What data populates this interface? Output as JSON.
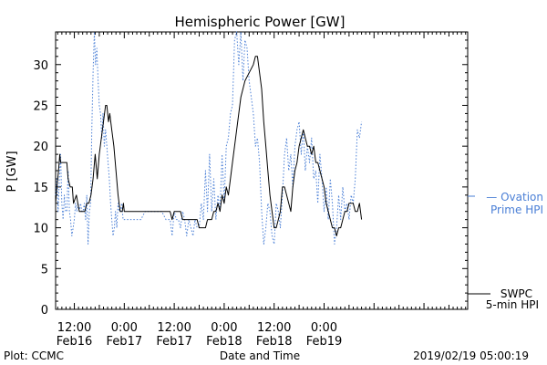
{
  "chart_data": {
    "type": "line",
    "title": "Hemispheric Power [GW]",
    "ylabel": "P [GW]",
    "xlabel": "Date and Time",
    "ylim": [
      0,
      34
    ],
    "xlim_hours": [
      -16.5,
      82.5
    ],
    "y_ticks": [
      0,
      5,
      10,
      15,
      20,
      25,
      30
    ],
    "x_ticks": [
      {
        "time": "12:00",
        "date": "Feb16",
        "hour": -12
      },
      {
        "time": "0:00",
        "date": "Feb17",
        "hour": 0
      },
      {
        "time": "12:00",
        "date": "Feb17",
        "hour": 12
      },
      {
        "time": "0:00",
        "date": "Feb18",
        "hour": 24
      },
      {
        "time": "12:00",
        "date": "Feb18",
        "hour": 36
      },
      {
        "time": "0:00",
        "date": "Feb19",
        "hour": 48
      }
    ],
    "series": [
      {
        "name": "SWPC 5-min HPI",
        "color": "#000000",
        "style": "solid",
        "points": [
          [
            -16.5,
            13
          ],
          [
            -16.2,
            15
          ],
          [
            -15.8,
            17
          ],
          [
            -15.5,
            19
          ],
          [
            -15.3,
            18
          ],
          [
            -14.5,
            18
          ],
          [
            -13.8,
            18
          ],
          [
            -13.5,
            16
          ],
          [
            -13,
            15
          ],
          [
            -12.5,
            15
          ],
          [
            -12.2,
            13
          ],
          [
            -11.5,
            14
          ],
          [
            -10.8,
            12
          ],
          [
            -9.5,
            12
          ],
          [
            -9.0,
            13
          ],
          [
            -8.5,
            13
          ],
          [
            -8.0,
            14
          ],
          [
            -7.5,
            16
          ],
          [
            -7.0,
            19
          ],
          [
            -6.5,
            16
          ],
          [
            -6.0,
            19
          ],
          [
            -5.5,
            21
          ],
          [
            -5.0,
            23
          ],
          [
            -4.5,
            25
          ],
          [
            -4.2,
            25
          ],
          [
            -3.8,
            23
          ],
          [
            -3.5,
            24
          ],
          [
            -3.0,
            22
          ],
          [
            -2.5,
            20
          ],
          [
            -2.0,
            17
          ],
          [
            -1.5,
            14
          ],
          [
            -1.0,
            12
          ],
          [
            -0.5,
            12
          ],
          [
            -0.2,
            13
          ],
          [
            0,
            12
          ],
          [
            4,
            12
          ],
          [
            8,
            12
          ],
          [
            11,
            12
          ],
          [
            11.5,
            11
          ],
          [
            12,
            12
          ],
          [
            13.5,
            12
          ],
          [
            14,
            11
          ],
          [
            16,
            11
          ],
          [
            17.5,
            11
          ],
          [
            18,
            10
          ],
          [
            19.5,
            10
          ],
          [
            20,
            11
          ],
          [
            21,
            11
          ],
          [
            21.5,
            12
          ],
          [
            22,
            12
          ],
          [
            22.5,
            13
          ],
          [
            23,
            12
          ],
          [
            23.5,
            14
          ],
          [
            24,
            13
          ],
          [
            24.5,
            15
          ],
          [
            25,
            14
          ],
          [
            26,
            18
          ],
          [
            27,
            22
          ],
          [
            28,
            26
          ],
          [
            29,
            28
          ],
          [
            30,
            29
          ],
          [
            31,
            30
          ],
          [
            31.5,
            31
          ],
          [
            32,
            31
          ],
          [
            33,
            27
          ],
          [
            33.5,
            23
          ],
          [
            34,
            20
          ],
          [
            34.5,
            17
          ],
          [
            35,
            14
          ],
          [
            35.5,
            12
          ],
          [
            36,
            10
          ],
          [
            36.5,
            10
          ],
          [
            37,
            11
          ],
          [
            37.5,
            12
          ],
          [
            38,
            15
          ],
          [
            38.5,
            15
          ],
          [
            39,
            14
          ],
          [
            39.5,
            13
          ],
          [
            40,
            12
          ],
          [
            40.5,
            15
          ],
          [
            41,
            17
          ],
          [
            41.5,
            18
          ],
          [
            42,
            20
          ],
          [
            42.5,
            21
          ],
          [
            43,
            22
          ],
          [
            43.5,
            21
          ],
          [
            44,
            20
          ],
          [
            44.5,
            20
          ],
          [
            45,
            19
          ],
          [
            45.5,
            20
          ],
          [
            46,
            18
          ],
          [
            46.5,
            18
          ],
          [
            47,
            17
          ],
          [
            47.5,
            16
          ],
          [
            48,
            15
          ],
          [
            48.5,
            13
          ],
          [
            49,
            12
          ],
          [
            49.5,
            11
          ],
          [
            50,
            10
          ],
          [
            50.5,
            10
          ],
          [
            51,
            9
          ],
          [
            51.5,
            10
          ],
          [
            52,
            10
          ],
          [
            52.5,
            11
          ],
          [
            53,
            12
          ],
          [
            53.5,
            12
          ],
          [
            54,
            13
          ],
          [
            55,
            13
          ],
          [
            55.5,
            12
          ],
          [
            56,
            12
          ],
          [
            56.5,
            13
          ],
          [
            57,
            11
          ]
        ]
      },
      {
        "name": "Ovation Prime HPI",
        "color": "#4a7fd6",
        "style": "dotted",
        "points": [
          [
            -16.5,
            14
          ],
          [
            -16.2,
            16
          ],
          [
            -15.9,
            12
          ],
          [
            -15.6,
            16
          ],
          [
            -15.3,
            19
          ],
          [
            -15,
            13
          ],
          [
            -14.7,
            11
          ],
          [
            -14.4,
            14
          ],
          [
            -14.1,
            12
          ],
          [
            -13.8,
            12
          ],
          [
            -13.5,
            17
          ],
          [
            -13.2,
            12
          ],
          [
            -12.9,
            11
          ],
          [
            -12.6,
            9
          ],
          [
            -12.3,
            10
          ],
          [
            -12,
            11
          ],
          [
            -11.7,
            13
          ],
          [
            -11.4,
            12
          ],
          [
            -11.1,
            13
          ],
          [
            -10.8,
            12
          ],
          [
            -10.5,
            13
          ],
          [
            -10.2,
            12
          ],
          [
            -9.9,
            12
          ],
          [
            -9.6,
            13
          ],
          [
            -9.3,
            11
          ],
          [
            -9,
            14
          ],
          [
            -8.7,
            8
          ],
          [
            -8.4,
            12
          ],
          [
            -8.1,
            13
          ],
          [
            -7.8,
            22
          ],
          [
            -7.5,
            29
          ],
          [
            -7.2,
            34
          ],
          [
            -6.9,
            30
          ],
          [
            -6.6,
            32
          ],
          [
            -6.3,
            28
          ],
          [
            -6,
            25
          ],
          [
            -5.7,
            24
          ],
          [
            -5.4,
            21
          ],
          [
            -5.1,
            24
          ],
          [
            -4.8,
            20
          ],
          [
            -4.5,
            22
          ],
          [
            -4.2,
            20
          ],
          [
            -3.9,
            18
          ],
          [
            -3.6,
            16
          ],
          [
            -3.3,
            13
          ],
          [
            -3,
            11
          ],
          [
            -2.7,
            9
          ],
          [
            -2.4,
            10
          ],
          [
            -2.1,
            12
          ],
          [
            -1.8,
            10
          ],
          [
            -1.5,
            13
          ],
          [
            -1.2,
            12
          ],
          [
            -0.9,
            12
          ],
          [
            -0.6,
            13
          ],
          [
            -0.3,
            11
          ],
          [
            0,
            11
          ],
          [
            1,
            11
          ],
          [
            2,
            11
          ],
          [
            3,
            11
          ],
          [
            4,
            11
          ],
          [
            5,
            12
          ],
          [
            6,
            12
          ],
          [
            7,
            12
          ],
          [
            8,
            12
          ],
          [
            9,
            12
          ],
          [
            10,
            11
          ],
          [
            11,
            11
          ],
          [
            11.5,
            9
          ],
          [
            12,
            12
          ],
          [
            12.5,
            11
          ],
          [
            13,
            11
          ],
          [
            13.5,
            10
          ],
          [
            14,
            12
          ],
          [
            14.5,
            11
          ],
          [
            15,
            9
          ],
          [
            15.5,
            11
          ],
          [
            16,
            10
          ],
          [
            16.5,
            9
          ],
          [
            17,
            11
          ],
          [
            17.5,
            10
          ],
          [
            18,
            10
          ],
          [
            18.5,
            13
          ],
          [
            19,
            11
          ],
          [
            19.5,
            17
          ],
          [
            20,
            12
          ],
          [
            20.5,
            19
          ],
          [
            21,
            12
          ],
          [
            21.5,
            16
          ],
          [
            22,
            11
          ],
          [
            22.5,
            14
          ],
          [
            23,
            12
          ],
          [
            23.5,
            19
          ],
          [
            24,
            13
          ],
          [
            24.5,
            20
          ],
          [
            25,
            21
          ],
          [
            25.5,
            24
          ],
          [
            26,
            25
          ],
          [
            26.5,
            33
          ],
          [
            27,
            34
          ],
          [
            27.5,
            30
          ],
          [
            28,
            34
          ],
          [
            28.5,
            28
          ],
          [
            29,
            33
          ],
          [
            29.5,
            32
          ],
          [
            30,
            28
          ],
          [
            30.5,
            26
          ],
          [
            31,
            24
          ],
          [
            31.5,
            20
          ],
          [
            32,
            21
          ],
          [
            32.5,
            18
          ],
          [
            33,
            12
          ],
          [
            33.5,
            8
          ],
          [
            34,
            10
          ],
          [
            34.5,
            13
          ],
          [
            35,
            12
          ],
          [
            35.5,
            9
          ],
          [
            36,
            8
          ],
          [
            36.5,
            13
          ],
          [
            37,
            12
          ],
          [
            37.5,
            10
          ],
          [
            38,
            14
          ],
          [
            38.5,
            19
          ],
          [
            39,
            21
          ],
          [
            39.5,
            17
          ],
          [
            40,
            19
          ],
          [
            40.5,
            15
          ],
          [
            41,
            20
          ],
          [
            41.5,
            22
          ],
          [
            42,
            23
          ],
          [
            42.5,
            19
          ],
          [
            43,
            22
          ],
          [
            43.5,
            17
          ],
          [
            44,
            20
          ],
          [
            44.5,
            18
          ],
          [
            45,
            21
          ],
          [
            45.5,
            16
          ],
          [
            46,
            17
          ],
          [
            46.5,
            13
          ],
          [
            47,
            19
          ],
          [
            47.5,
            16
          ],
          [
            48,
            12
          ],
          [
            48.5,
            15
          ],
          [
            49,
            11
          ],
          [
            49.5,
            16
          ],
          [
            50,
            13
          ],
          [
            50.5,
            8
          ],
          [
            51,
            10
          ],
          [
            51.5,
            14
          ],
          [
            52,
            11
          ],
          [
            52.5,
            15
          ],
          [
            53,
            12
          ],
          [
            53.5,
            13
          ],
          [
            54,
            11
          ],
          [
            54.5,
            14
          ],
          [
            55,
            13
          ],
          [
            55.5,
            16
          ],
          [
            56,
            22
          ],
          [
            56.5,
            21
          ],
          [
            57,
            23
          ]
        ]
      }
    ]
  },
  "legend": {
    "ovation": {
      "line1": "Ovation",
      "line2": "Prime HPI",
      "color": "#4a7fd6"
    },
    "swpc": {
      "line1": "SWPC",
      "line2": "5-min HPI",
      "color": "#000000"
    }
  },
  "footer": {
    "left": "Plot: CCMC",
    "center": "Date and Time",
    "right": "2019/02/19 05:00:19"
  }
}
